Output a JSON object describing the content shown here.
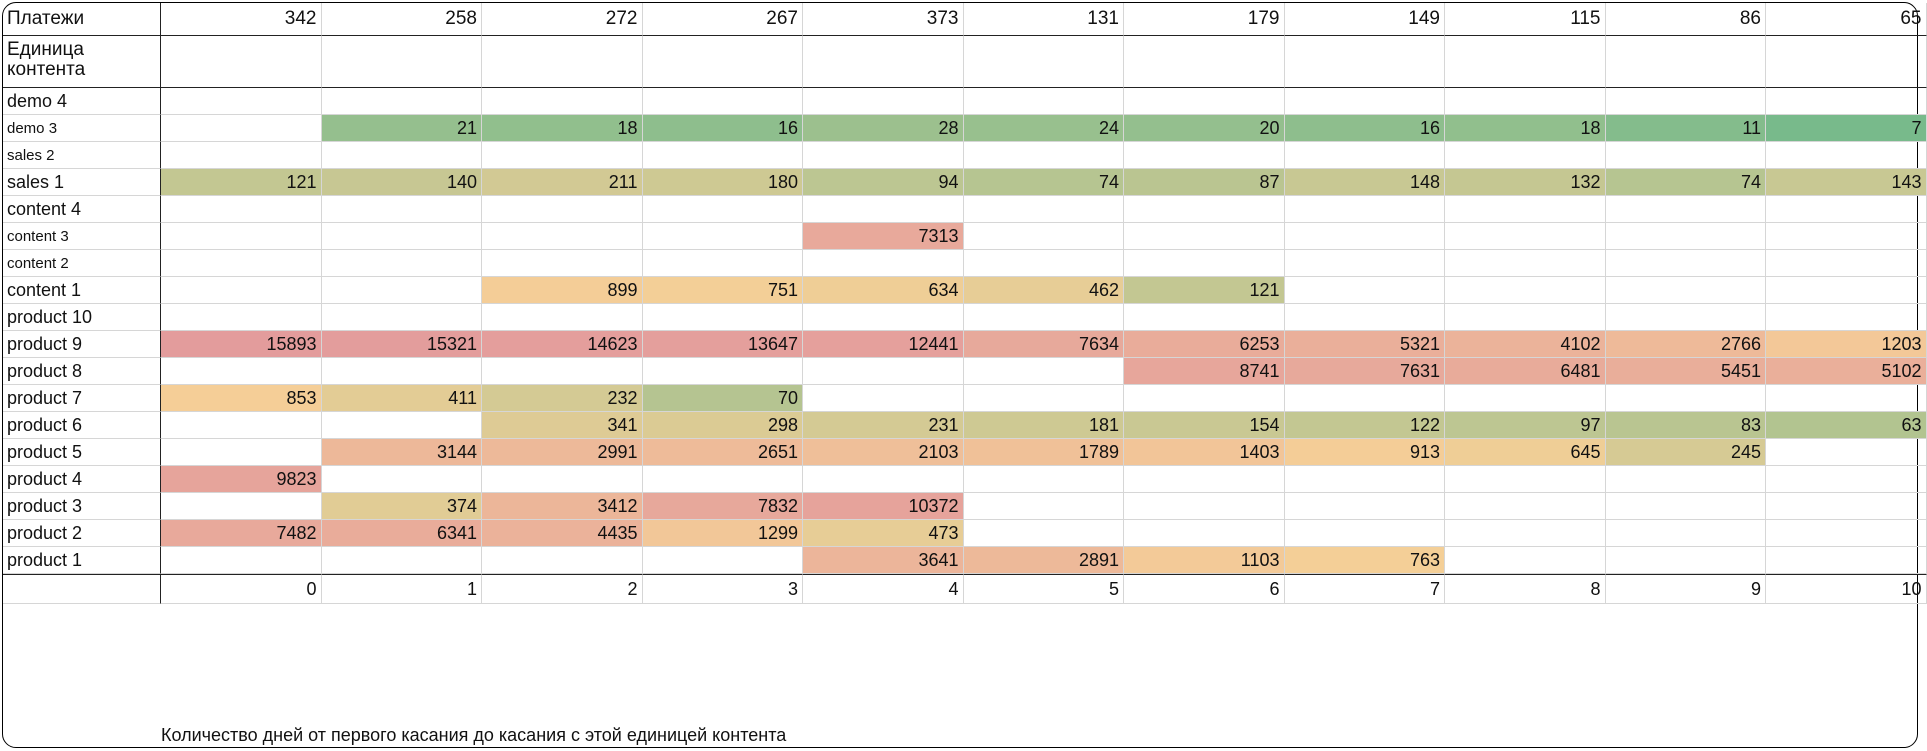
{
  "header": {
    "label": "Платежи",
    "values": [
      "342",
      "258",
      "272",
      "267",
      "373",
      "131",
      "179",
      "149",
      "115",
      "86",
      "65"
    ]
  },
  "unit_header": {
    "label": "Единица контента"
  },
  "rows": [
    {
      "label": "demo 4",
      "small": false,
      "cells": [
        "",
        "",
        "",
        "",
        "",
        "",
        "",
        "",
        "",
        "",
        ""
      ]
    },
    {
      "label": "demo 3",
      "small": true,
      "cells": [
        "",
        "21",
        "18",
        "16",
        "28",
        "24",
        "20",
        "16",
        "18",
        "11",
        "7"
      ]
    },
    {
      "label": "sales 2",
      "small": true,
      "cells": [
        "",
        "",
        "",
        "",
        "",
        "",
        "",
        "",
        "",
        "",
        ""
      ]
    },
    {
      "label": "sales 1",
      "small": false,
      "cells": [
        "121",
        "140",
        "211",
        "180",
        "94",
        "74",
        "87",
        "148",
        "132",
        "74",
        "143"
      ]
    },
    {
      "label": "content 4",
      "small": false,
      "cells": [
        "",
        "",
        "",
        "",
        "",
        "",
        "",
        "",
        "",
        "",
        ""
      ]
    },
    {
      "label": "content 3",
      "small": true,
      "cells": [
        "",
        "",
        "",
        "",
        "7313",
        "",
        "",
        "",
        "",
        "",
        ""
      ]
    },
    {
      "label": "content 2",
      "small": true,
      "cells": [
        "",
        "",
        "",
        "",
        "",
        "",
        "",
        "",
        "",
        "",
        ""
      ]
    },
    {
      "label": "content 1",
      "small": false,
      "cells": [
        "",
        "",
        "899",
        "751",
        "634",
        "462",
        "121",
        "",
        "",
        "",
        ""
      ]
    },
    {
      "label": "product 10",
      "small": false,
      "cells": [
        "",
        "",
        "",
        "",
        "",
        "",
        "",
        "",
        "",
        "",
        ""
      ]
    },
    {
      "label": "product 9",
      "small": false,
      "cells": [
        "15893",
        "15321",
        "14623",
        "13647",
        "12441",
        "7634",
        "6253",
        "5321",
        "4102",
        "2766",
        "1203"
      ]
    },
    {
      "label": "product 8",
      "small": false,
      "cells": [
        "",
        "",
        "",
        "",
        "",
        "",
        "8741",
        "7631",
        "6481",
        "5451",
        "5102"
      ]
    },
    {
      "label": "product 7",
      "small": false,
      "cells": [
        "853",
        "411",
        "232",
        "70",
        "",
        "",
        "",
        "",
        "",
        "",
        ""
      ]
    },
    {
      "label": "product 6",
      "small": false,
      "cells": [
        "",
        "",
        "341",
        "298",
        "231",
        "181",
        "154",
        "122",
        "97",
        "83",
        "63"
      ]
    },
    {
      "label": "product 5",
      "small": false,
      "cells": [
        "",
        "3144",
        "2991",
        "2651",
        "2103",
        "1789",
        "1403",
        "913",
        "645",
        "245",
        ""
      ]
    },
    {
      "label": "product 4",
      "small": false,
      "cells": [
        "9823",
        "",
        "",
        "",
        "",
        "",
        "",
        "",
        "",
        "",
        ""
      ]
    },
    {
      "label": "product 3",
      "small": false,
      "cells": [
        "",
        "374",
        "3412",
        "7832",
        "10372",
        "",
        "",
        "",
        "",
        "",
        ""
      ]
    },
    {
      "label": "product 2",
      "small": false,
      "cells": [
        "7482",
        "6341",
        "4435",
        "1299",
        "473",
        "",
        "",
        "",
        "",
        "",
        ""
      ]
    },
    {
      "label": "product 1",
      "small": false,
      "cells": [
        "",
        "",
        "",
        "",
        "3641",
        "2891",
        "1103",
        "763",
        "",
        "",
        ""
      ]
    }
  ],
  "footer": {
    "days": [
      "0",
      "1",
      "2",
      "3",
      "4",
      "5",
      "6",
      "7",
      "8",
      "9",
      "10"
    ]
  },
  "caption": "Количество дней от первого касания до касания с этой единицей контента",
  "colors": {
    "green": "#6fb98a",
    "yellow": "#f5cf97",
    "red": "#e39c9c",
    "grid": "#d6d6d6",
    "border": "#222222"
  }
}
